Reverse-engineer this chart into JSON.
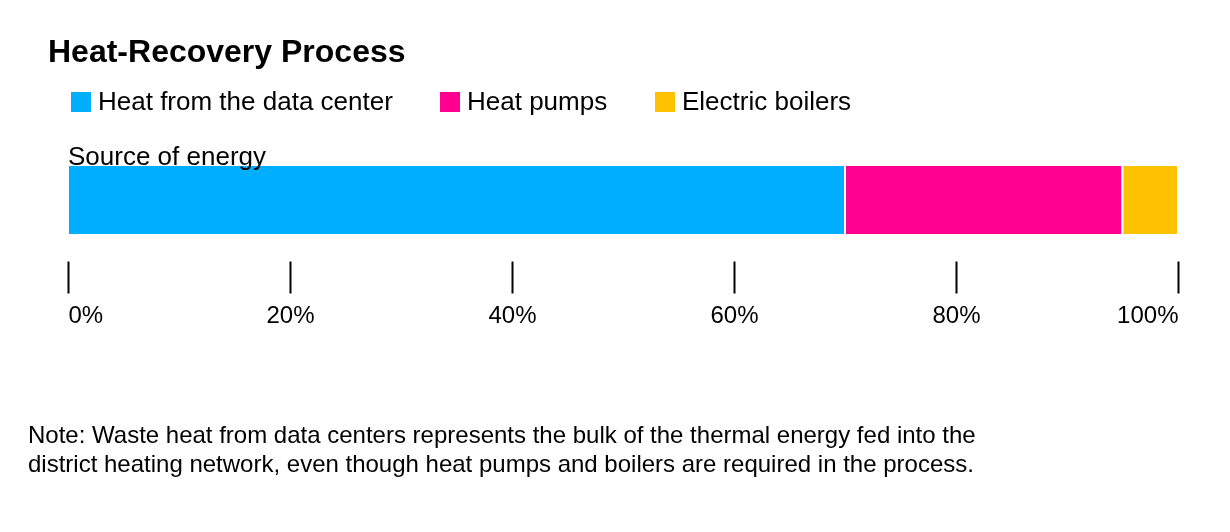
{
  "chart_data": {
    "type": "bar",
    "title": "Heat-Recovery Process",
    "orientation": "horizontal",
    "stacked": true,
    "categories": [
      "Source of energy"
    ],
    "series": [
      {
        "name": "Heat from the data center",
        "color": "#00aeff",
        "values": [
          70
        ]
      },
      {
        "name": "Heat pumps",
        "color": "#ff0090",
        "values": [
          25
        ]
      },
      {
        "name": "Electric boilers",
        "color": "#ffc200",
        "values": [
          5
        ]
      }
    ],
    "xlim": [
      0,
      100
    ],
    "xticks": [
      {
        "value": 0,
        "label": "0%"
      },
      {
        "value": 20,
        "label": "20%"
      },
      {
        "value": 40,
        "label": "40%"
      },
      {
        "value": 60,
        "label": "60%"
      },
      {
        "value": 80,
        "label": "80%"
      },
      {
        "value": 100,
        "label": "100%"
      }
    ],
    "legend": "top left",
    "annotations": [
      "Note: Waste heat from data centers represents the bulk of the thermal energy fed into the district heating network, even though heat pumps and boilers are required in the process."
    ]
  }
}
